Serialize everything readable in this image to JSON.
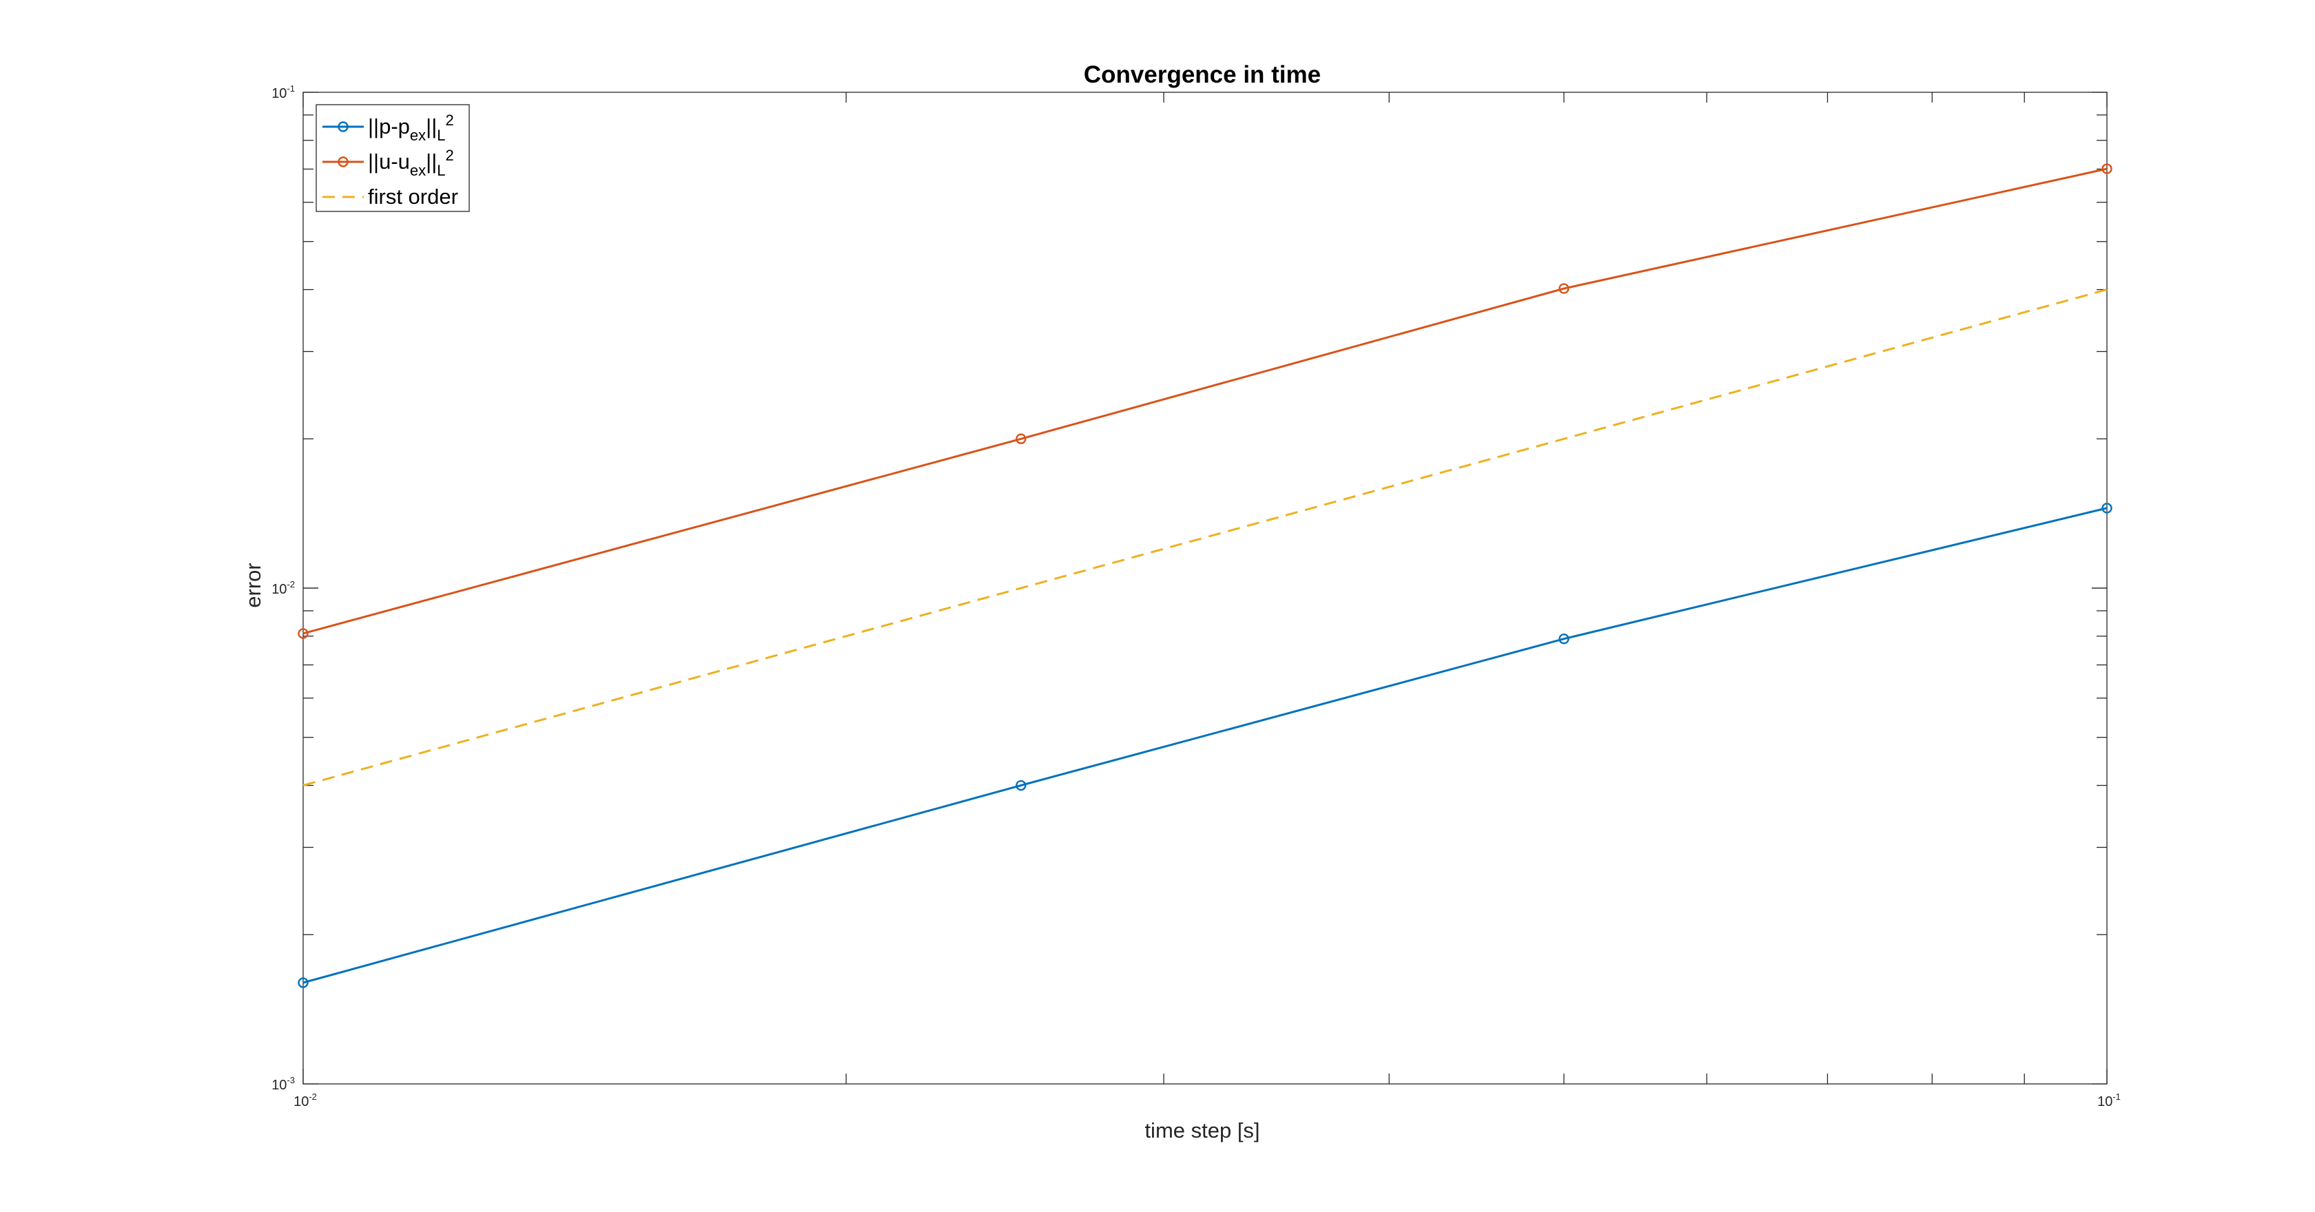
{
  "chart_data": {
    "type": "line",
    "title": "Convergence in time",
    "xlabel": "time step [s]",
    "ylabel": "error",
    "xscale": "log",
    "yscale": "log",
    "xlim": [
      0.01,
      0.1
    ],
    "ylim": [
      0.001,
      0.1
    ],
    "x_tick_labels": [
      {
        "value": 0.01,
        "base": "10",
        "exp": "-2"
      },
      {
        "value": 0.1,
        "base": "10",
        "exp": "-1"
      }
    ],
    "y_tick_labels": [
      {
        "value": 0.001,
        "base": "10",
        "exp": "-3"
      },
      {
        "value": 0.01,
        "base": "10",
        "exp": "-2"
      },
      {
        "value": 0.1,
        "base": "10",
        "exp": "-1"
      }
    ],
    "grid": false,
    "legend_position": "top-left",
    "x": [
      0.01,
      0.025,
      0.05,
      0.1
    ],
    "series": [
      {
        "key": "p",
        "legend": {
          "main1": "||p-p",
          "sub1": "ex",
          "main2": "||",
          "sub2": "L",
          "sup2": "2"
        },
        "values": [
          0.0016,
          0.004,
          0.0079,
          0.0145
        ],
        "color": "#0072BD",
        "dashed": false,
        "markers": true
      },
      {
        "key": "u",
        "legend": {
          "main1": "||u-u",
          "sub1": "ex",
          "main2": "||",
          "sub2": "L",
          "sup2": "2"
        },
        "values": [
          0.0081,
          0.02,
          0.0402,
          0.0701
        ],
        "color": "#D95319",
        "dashed": false,
        "markers": true
      },
      {
        "key": "first",
        "legend": {
          "main1": "first order"
        },
        "values": [
          0.004,
          0.01,
          0.02,
          0.04
        ],
        "color": "#EDB120",
        "dashed": true,
        "markers": false
      }
    ]
  }
}
